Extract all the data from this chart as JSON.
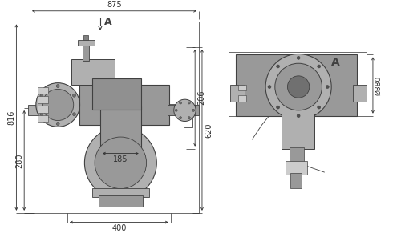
{
  "bg_color": "#ffffff",
  "line_color": "#404040",
  "dim_color": "#303030",
  "gray_fill": "#b0b0b0",
  "gray_dark": "#808080",
  "gray_mid": "#999999",
  "gray_light": "#cccccc",
  "label_A_top": "A",
  "label_A_side": "A",
  "dim_875": "875",
  "dim_816": "816",
  "dim_280": "280",
  "dim_206": "206",
  "dim_620": "620",
  "dim_185": "185",
  "dim_400": "400",
  "dim_380": "Ø380",
  "font_size_dim": 7,
  "font_size_label": 9
}
